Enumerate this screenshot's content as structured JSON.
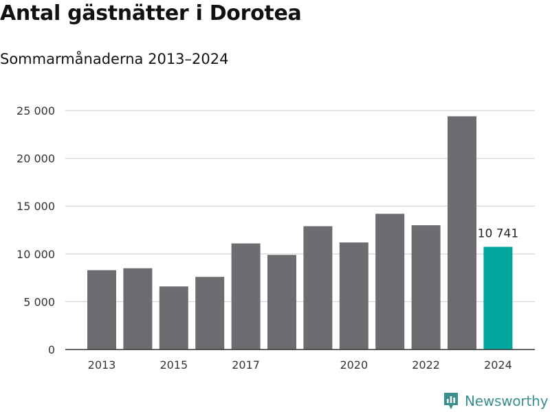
{
  "header": {
    "title": "Antal gästnätter i Dorotea",
    "subtitle": "Sommarmånaderna 2013–2024"
  },
  "brand": {
    "name": "Newsworthy",
    "logo_icon": "newsworthy-logo-icon",
    "color": "#3a8f8f"
  },
  "colors": {
    "bar": "#6d6c71",
    "highlight": "#00a69c",
    "grid": "#dddddd",
    "axis": "#333333",
    "text": "#333333"
  },
  "chart_data": {
    "type": "bar",
    "categories": [
      "2013",
      "2014",
      "2015",
      "2016",
      "2017",
      "2018",
      "2019",
      "2020",
      "2021",
      "2022",
      "2023",
      "2024"
    ],
    "values": [
      8300,
      8500,
      6600,
      7600,
      11100,
      9900,
      12900,
      11200,
      14200,
      13000,
      24400,
      10741
    ],
    "highlight_index": 11,
    "x_tick_labels": [
      "2013",
      "2015",
      "2017",
      "2020",
      "2022",
      "2024"
    ],
    "y_ticks": [
      0,
      5000,
      10000,
      15000,
      20000,
      25000
    ],
    "y_tick_labels": [
      "0",
      "5 000",
      "10 000",
      "15 000",
      "20 000",
      "25 000"
    ],
    "data_labels": [
      {
        "index": 11,
        "text": "10 741"
      }
    ],
    "ylim": [
      0,
      25000
    ],
    "grid": true,
    "legend": "none"
  }
}
